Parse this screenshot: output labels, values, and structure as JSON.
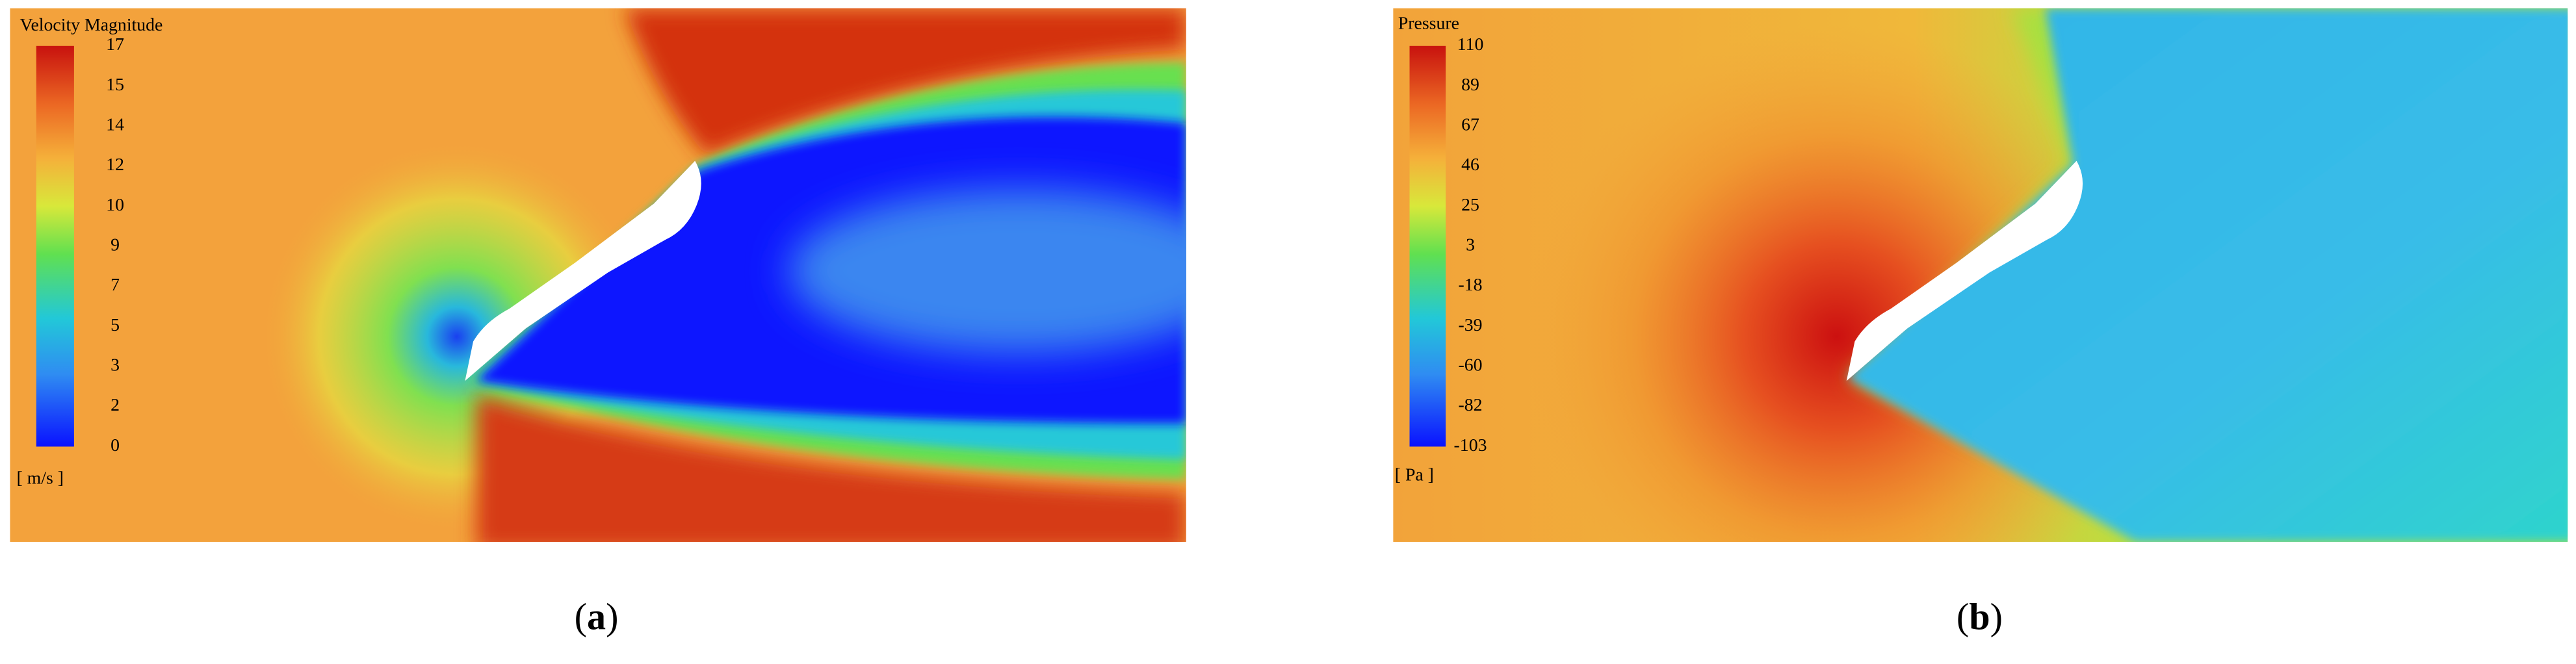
{
  "panels": [
    {
      "colorbar": {
        "title": "Velocity Magnitude",
        "ticks": [
          17,
          15,
          14,
          12,
          10,
          9,
          7,
          5,
          3,
          2,
          0
        ],
        "unit": "[ m/s ]"
      },
      "caption": {
        "open": "(",
        "label": "a",
        "close": ")"
      }
    },
    {
      "colorbar": {
        "title": "Pressure",
        "ticks": [
          110,
          89,
          67,
          46,
          25,
          3,
          -18,
          -39,
          -60,
          -82,
          -103
        ],
        "unit": "[ Pa ]"
      },
      "caption": {
        "open": "(",
        "label": "b",
        "close": ")"
      }
    }
  ]
}
